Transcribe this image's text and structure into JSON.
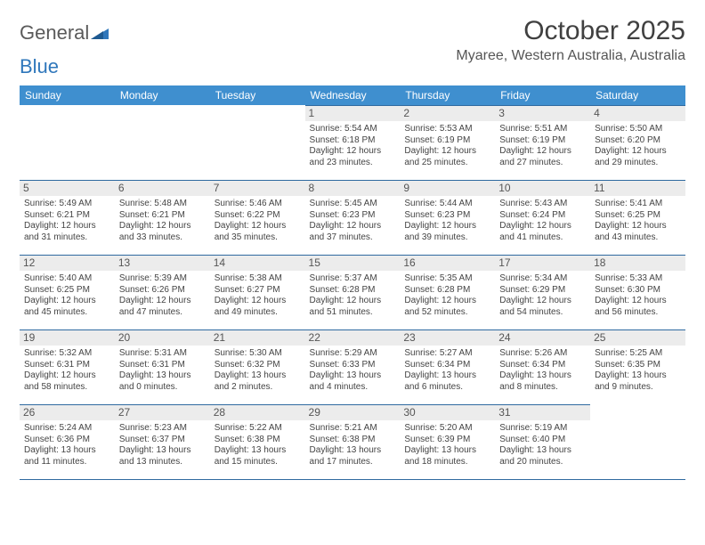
{
  "brand": {
    "part1": "General",
    "part2": "Blue"
  },
  "title": "October 2025",
  "location": "Myaree, Western Australia, Australia",
  "colors": {
    "header_bg": "#3f8fcf",
    "header_text": "#ffffff",
    "row_divider": "#2f6aa0",
    "daynum_bg": "#ececec",
    "text": "#444444",
    "brand_blue": "#2f77bb"
  },
  "day_headers": [
    "Sunday",
    "Monday",
    "Tuesday",
    "Wednesday",
    "Thursday",
    "Friday",
    "Saturday"
  ],
  "weeks": [
    [
      {
        "blank": true
      },
      {
        "blank": true
      },
      {
        "blank": true
      },
      {
        "day": "1",
        "sunrise": "5:54 AM",
        "sunset": "6:18 PM",
        "daylight": "12 hours and 23 minutes."
      },
      {
        "day": "2",
        "sunrise": "5:53 AM",
        "sunset": "6:19 PM",
        "daylight": "12 hours and 25 minutes."
      },
      {
        "day": "3",
        "sunrise": "5:51 AM",
        "sunset": "6:19 PM",
        "daylight": "12 hours and 27 minutes."
      },
      {
        "day": "4",
        "sunrise": "5:50 AM",
        "sunset": "6:20 PM",
        "daylight": "12 hours and 29 minutes."
      }
    ],
    [
      {
        "day": "5",
        "sunrise": "5:49 AM",
        "sunset": "6:21 PM",
        "daylight": "12 hours and 31 minutes."
      },
      {
        "day": "6",
        "sunrise": "5:48 AM",
        "sunset": "6:21 PM",
        "daylight": "12 hours and 33 minutes."
      },
      {
        "day": "7",
        "sunrise": "5:46 AM",
        "sunset": "6:22 PM",
        "daylight": "12 hours and 35 minutes."
      },
      {
        "day": "8",
        "sunrise": "5:45 AM",
        "sunset": "6:23 PM",
        "daylight": "12 hours and 37 minutes."
      },
      {
        "day": "9",
        "sunrise": "5:44 AM",
        "sunset": "6:23 PM",
        "daylight": "12 hours and 39 minutes."
      },
      {
        "day": "10",
        "sunrise": "5:43 AM",
        "sunset": "6:24 PM",
        "daylight": "12 hours and 41 minutes."
      },
      {
        "day": "11",
        "sunrise": "5:41 AM",
        "sunset": "6:25 PM",
        "daylight": "12 hours and 43 minutes."
      }
    ],
    [
      {
        "day": "12",
        "sunrise": "5:40 AM",
        "sunset": "6:25 PM",
        "daylight": "12 hours and 45 minutes."
      },
      {
        "day": "13",
        "sunrise": "5:39 AM",
        "sunset": "6:26 PM",
        "daylight": "12 hours and 47 minutes."
      },
      {
        "day": "14",
        "sunrise": "5:38 AM",
        "sunset": "6:27 PM",
        "daylight": "12 hours and 49 minutes."
      },
      {
        "day": "15",
        "sunrise": "5:37 AM",
        "sunset": "6:28 PM",
        "daylight": "12 hours and 51 minutes."
      },
      {
        "day": "16",
        "sunrise": "5:35 AM",
        "sunset": "6:28 PM",
        "daylight": "12 hours and 52 minutes."
      },
      {
        "day": "17",
        "sunrise": "5:34 AM",
        "sunset": "6:29 PM",
        "daylight": "12 hours and 54 minutes."
      },
      {
        "day": "18",
        "sunrise": "5:33 AM",
        "sunset": "6:30 PM",
        "daylight": "12 hours and 56 minutes."
      }
    ],
    [
      {
        "day": "19",
        "sunrise": "5:32 AM",
        "sunset": "6:31 PM",
        "daylight": "12 hours and 58 minutes."
      },
      {
        "day": "20",
        "sunrise": "5:31 AM",
        "sunset": "6:31 PM",
        "daylight": "13 hours and 0 minutes."
      },
      {
        "day": "21",
        "sunrise": "5:30 AM",
        "sunset": "6:32 PM",
        "daylight": "13 hours and 2 minutes."
      },
      {
        "day": "22",
        "sunrise": "5:29 AM",
        "sunset": "6:33 PM",
        "daylight": "13 hours and 4 minutes."
      },
      {
        "day": "23",
        "sunrise": "5:27 AM",
        "sunset": "6:34 PM",
        "daylight": "13 hours and 6 minutes."
      },
      {
        "day": "24",
        "sunrise": "5:26 AM",
        "sunset": "6:34 PM",
        "daylight": "13 hours and 8 minutes."
      },
      {
        "day": "25",
        "sunrise": "5:25 AM",
        "sunset": "6:35 PM",
        "daylight": "13 hours and 9 minutes."
      }
    ],
    [
      {
        "day": "26",
        "sunrise": "5:24 AM",
        "sunset": "6:36 PM",
        "daylight": "13 hours and 11 minutes."
      },
      {
        "day": "27",
        "sunrise": "5:23 AM",
        "sunset": "6:37 PM",
        "daylight": "13 hours and 13 minutes."
      },
      {
        "day": "28",
        "sunrise": "5:22 AM",
        "sunset": "6:38 PM",
        "daylight": "13 hours and 15 minutes."
      },
      {
        "day": "29",
        "sunrise": "5:21 AM",
        "sunset": "6:38 PM",
        "daylight": "13 hours and 17 minutes."
      },
      {
        "day": "30",
        "sunrise": "5:20 AM",
        "sunset": "6:39 PM",
        "daylight": "13 hours and 18 minutes."
      },
      {
        "day": "31",
        "sunrise": "5:19 AM",
        "sunset": "6:40 PM",
        "daylight": "13 hours and 20 minutes."
      },
      {
        "blank": true
      }
    ]
  ],
  "labels": {
    "sunrise": "Sunrise: ",
    "sunset": "Sunset: ",
    "daylight": "Daylight: "
  }
}
